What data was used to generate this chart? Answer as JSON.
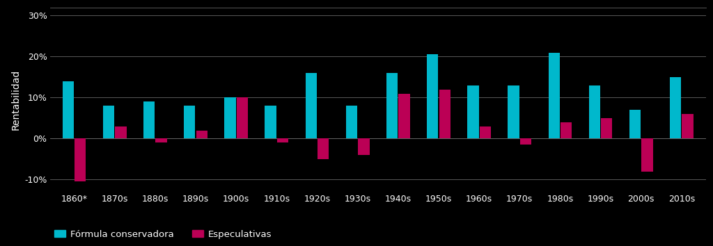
{
  "categories": [
    "1860*",
    "1870s",
    "1880s",
    "1890s",
    "1900s",
    "1910s",
    "1920s",
    "1930s",
    "1940s",
    "1950s",
    "1960s",
    "1970s",
    "1980s",
    "1990s",
    "2000s",
    "2010s"
  ],
  "conservadora": [
    14,
    8,
    9,
    8,
    10,
    8,
    16,
    8,
    16,
    20.5,
    13,
    13,
    21,
    13,
    7,
    15
  ],
  "especulativas": [
    -10.5,
    3,
    -1,
    2,
    10,
    -1,
    -5,
    -4,
    11,
    12,
    3,
    -1.5,
    4,
    5,
    -8,
    6
  ],
  "color_conservadora": "#00B8CC",
  "color_especulativas": "#BB0055",
  "ylabel": "Rentabilidad",
  "ylim_min": -13,
  "ylim_max": 32,
  "yticks": [
    -10,
    0,
    10,
    20,
    30
  ],
  "ytick_labels": [
    "-10%",
    "0%",
    "10%",
    "20%",
    "30%"
  ],
  "legend_conservadora": "Fórmula conservadora",
  "legend_especulativas": "Especulativas",
  "background_color": "#000000",
  "text_color": "#FFFFFF",
  "grid_color": "#666666",
  "bar_width": 0.28,
  "axis_fontsize": 9,
  "ylabel_fontsize": 10,
  "legend_fontsize": 9.5
}
